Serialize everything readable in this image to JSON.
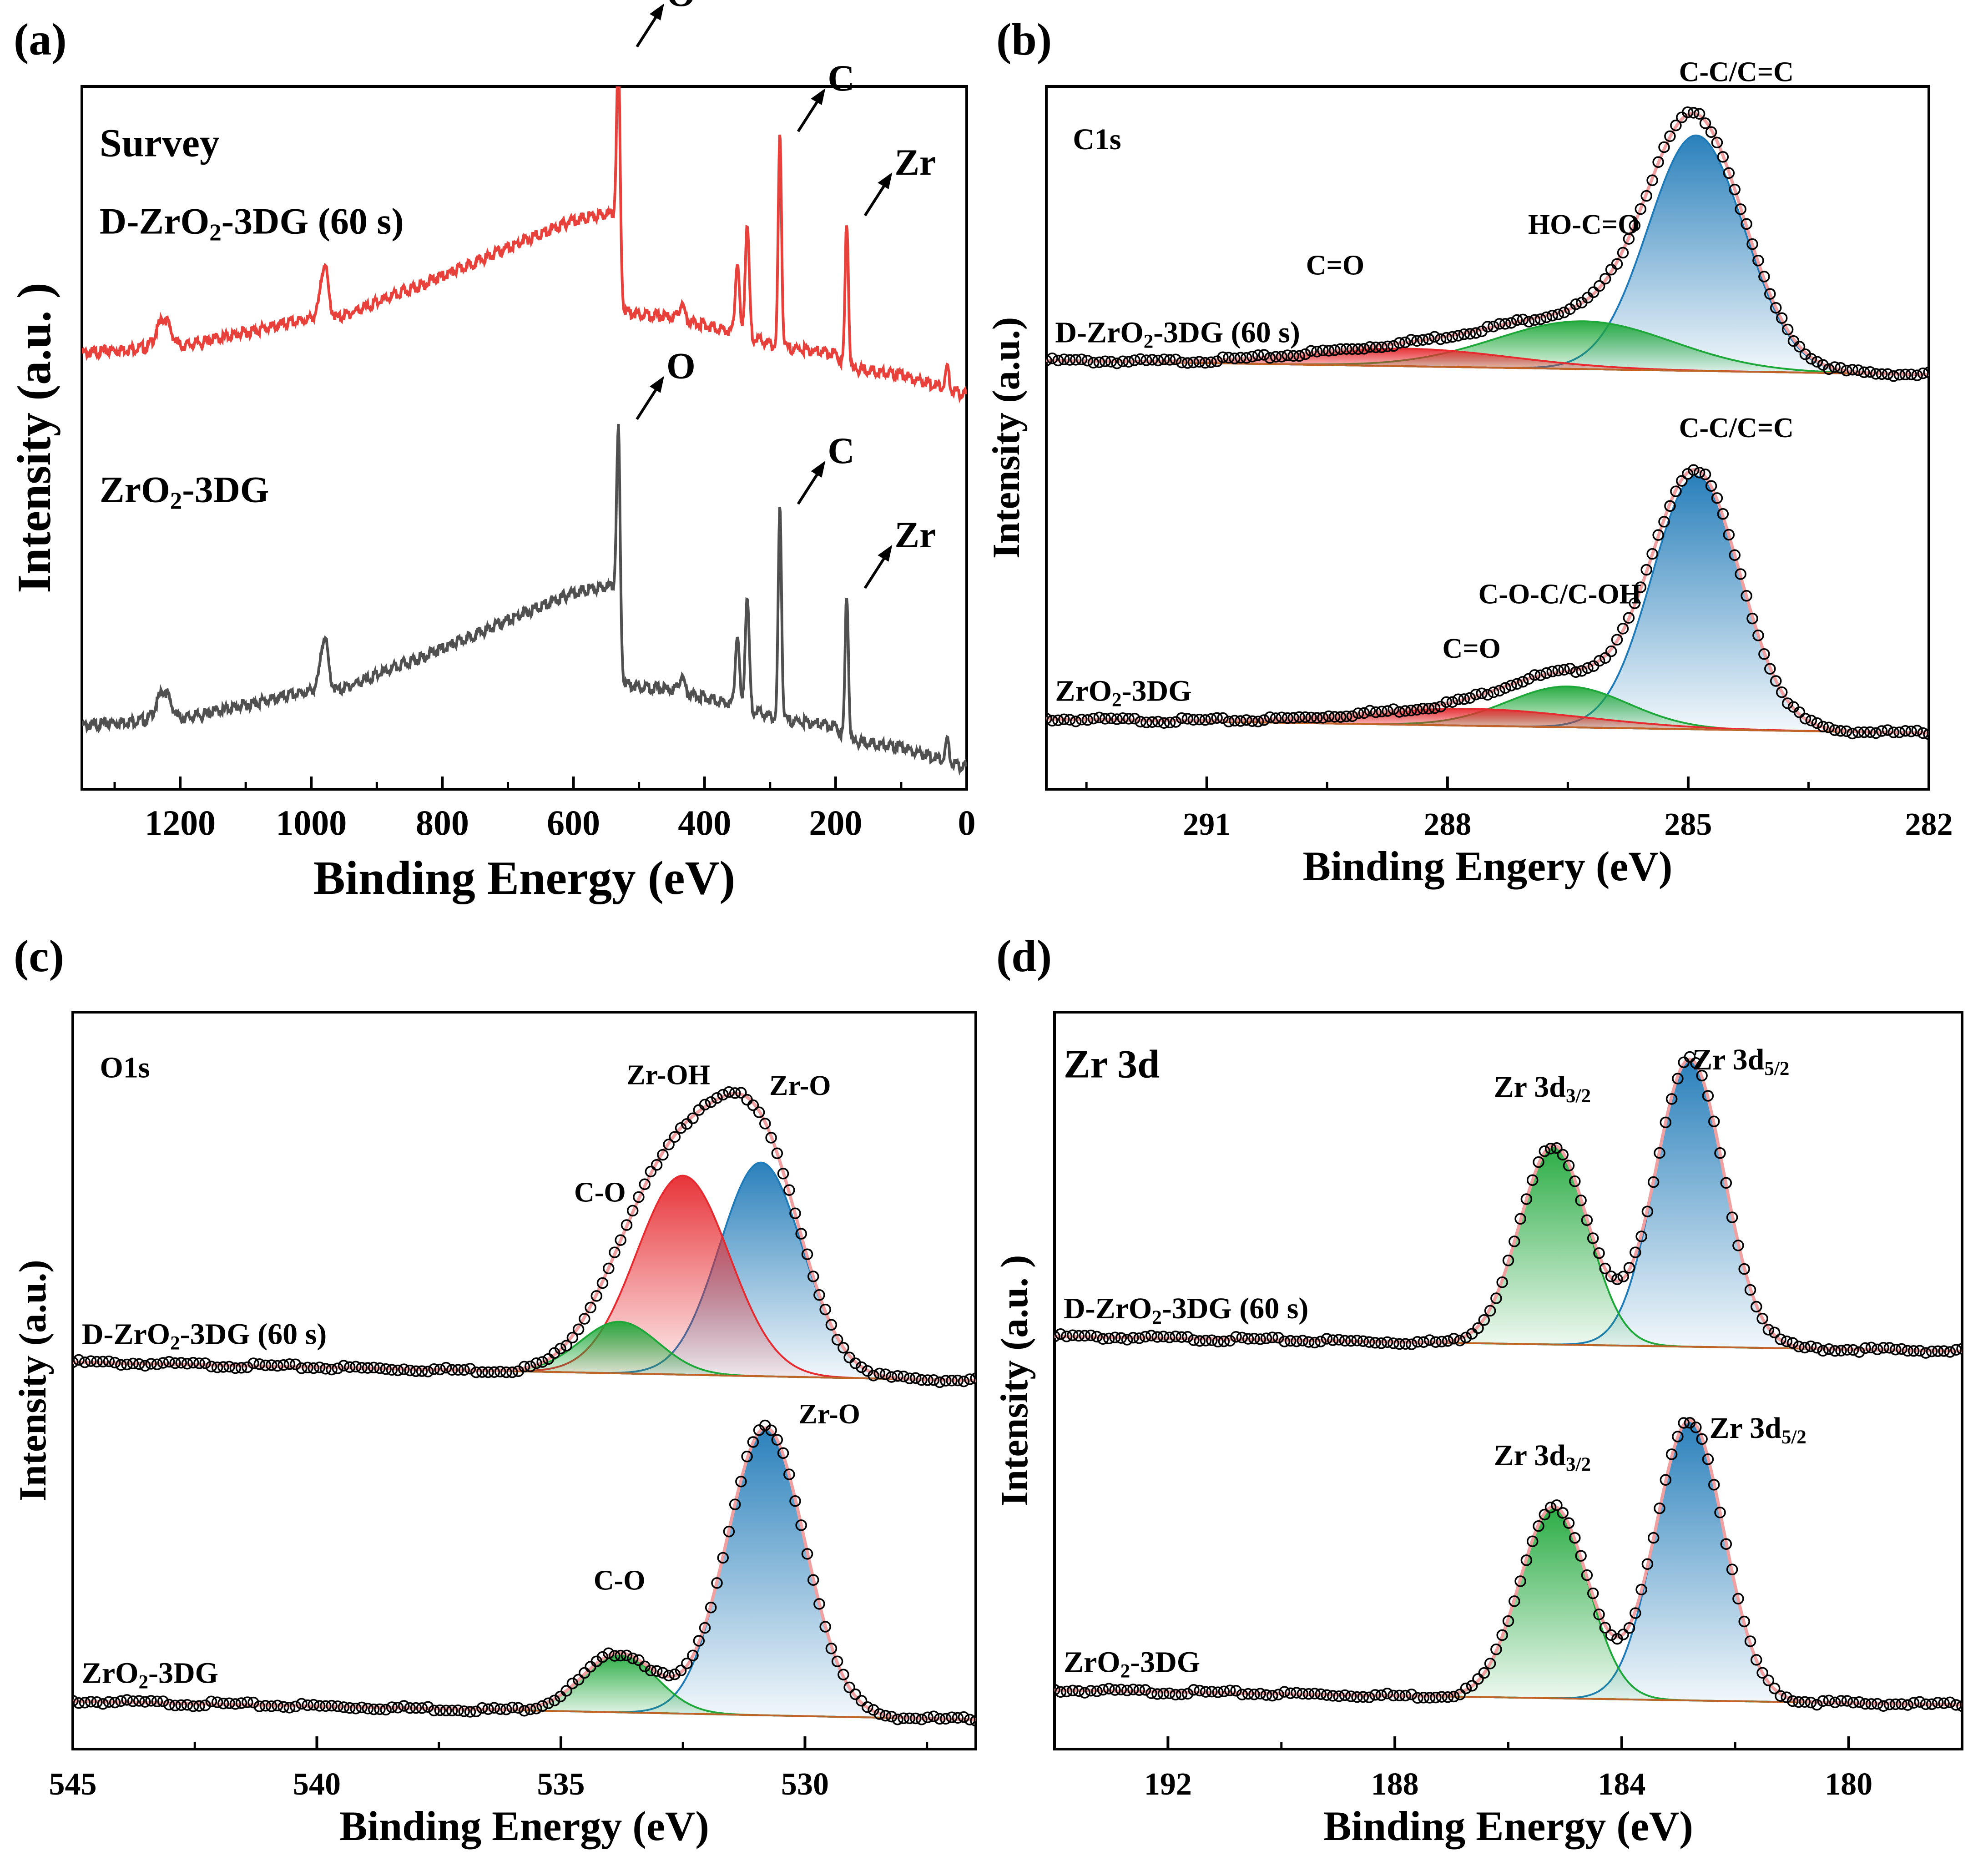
{
  "colors": {
    "sample_top": "#e8403a",
    "sample_bottom": "#505050",
    "peak_blue": "#1f7ab8",
    "peak_red": "#e62a2f",
    "peak_green": "#1fa83a",
    "envelope": "#f0a0a0",
    "background_line": "#c0642a",
    "marker": "#000000"
  },
  "chart_data": [
    {
      "panel": "a",
      "panel_label": "(a)",
      "type": "line",
      "title": "Survey",
      "xlabel": "Binding Energy (eV)",
      "ylabel": "Intensity (a.u. )",
      "xlim": [
        1350,
        0
      ],
      "ylim": [
        0,
        100
      ],
      "xticks": [
        1200,
        1000,
        800,
        600,
        400,
        200,
        0
      ],
      "xtick_labels": [
        "1200",
        "1000",
        "800",
        "600",
        "400",
        "200",
        "0"
      ],
      "series": [
        {
          "name": "D-ZrO2-3DG (60 s)",
          "label_main": "D-ZrO",
          "label_sub": "2",
          "label_rest": "-3DG (60 s)",
          "color_key": "sample_top",
          "offset": 56,
          "baseline": [
            [
              1350,
              6
            ],
            [
              1240,
              7
            ],
            [
              1200,
              7
            ],
            [
              1100,
              9
            ],
            [
              1000,
              11
            ],
            [
              980,
              13
            ],
            [
              960,
              11
            ],
            [
              800,
              17
            ],
            [
              700,
              21
            ],
            [
              600,
              25
            ],
            [
              545,
              26
            ],
            [
              531,
              25
            ],
            [
              528,
              12
            ],
            [
              440,
              11
            ],
            [
              350,
              9
            ],
            [
              290,
              7
            ],
            [
              200,
              6
            ],
            [
              185,
              4
            ],
            [
              100,
              3
            ],
            [
              0,
              0
            ]
          ],
          "peaks": [
            [
              1225,
              4,
              10
            ],
            [
              980,
              6,
              5
            ],
            [
              531,
              24,
              3
            ],
            [
              435,
              2,
              4
            ],
            [
              350,
              10,
              3
            ],
            [
              335,
              16,
              3
            ],
            [
              285,
              30,
              2.5
            ],
            [
              183,
              21,
              2.5
            ],
            [
              30,
              3,
              3
            ]
          ]
        },
        {
          "name": "ZrO2-3DG",
          "label_main": "ZrO",
          "label_sub": "2",
          "label_rest": "-3DG",
          "color_key": "sample_bottom",
          "offset": 3,
          "baseline": [
            [
              1350,
              6
            ],
            [
              1240,
              7
            ],
            [
              1200,
              7
            ],
            [
              1100,
              9
            ],
            [
              1000,
              11
            ],
            [
              980,
              13
            ],
            [
              960,
              11
            ],
            [
              800,
              17
            ],
            [
              700,
              21
            ],
            [
              600,
              25
            ],
            [
              545,
              26
            ],
            [
              531,
              25
            ],
            [
              528,
              12
            ],
            [
              440,
              11
            ],
            [
              350,
              9
            ],
            [
              290,
              7
            ],
            [
              200,
              6
            ],
            [
              185,
              4
            ],
            [
              100,
              3
            ],
            [
              0,
              0
            ]
          ],
          "peaks": [
            [
              1225,
              4,
              10
            ],
            [
              980,
              6,
              5
            ],
            [
              531,
              24,
              3
            ],
            [
              435,
              2,
              4
            ],
            [
              350,
              10,
              3
            ],
            [
              335,
              16,
              3
            ],
            [
              285,
              30,
              2.5
            ],
            [
              183,
              21,
              2.5
            ],
            [
              30,
              3,
              3
            ]
          ]
        }
      ],
      "annotations": [
        {
          "text": "O",
          "x": 531,
          "series": 0,
          "at": 100
        },
        {
          "text": "C",
          "x": 285,
          "series": 0,
          "at": 100
        },
        {
          "text": "Zr",
          "x": 183,
          "series": 0,
          "at": 100
        },
        {
          "text": "O",
          "x": 531,
          "series": 1,
          "at": 100
        },
        {
          "text": "C",
          "x": 285,
          "series": 1,
          "at": 100
        },
        {
          "text": "Zr",
          "x": 183,
          "series": 1,
          "at": 100
        }
      ]
    },
    {
      "panel": "b",
      "panel_label": "(b)",
      "type": "line",
      "title": "C1s",
      "xlabel": "Binding Engery (eV)",
      "ylabel": "Intensity (a.u.)",
      "xlim": [
        293,
        282
      ],
      "ylim": [
        0,
        100
      ],
      "xticks": [
        291,
        288,
        285,
        282
      ],
      "xtick_labels": [
        "291",
        "288",
        "285",
        "282"
      ],
      "series": [
        {
          "name": "D-ZrO2-3DG (60 s)",
          "label_main": "D-ZrO",
          "label_sub": "2",
          "label_rest": "-3DG (60 s)",
          "offset": 59,
          "bg_start": 2,
          "bg_end": 0,
          "components": [
            {
              "name": "C-C/C=C",
              "center": 284.9,
              "height": 33.5,
              "sigma": 0.6,
              "color_key": "peak_blue"
            },
            {
              "name": "HO-C=O",
              "center": 286.3,
              "height": 6.8,
              "sigma": 1.1,
              "color_key": "peak_green"
            },
            {
              "name": "C=O",
              "center": 288.5,
              "height": 2.5,
              "sigma": 1.3,
              "color_key": "peak_red"
            }
          ]
        },
        {
          "name": "ZrO2-3DG",
          "label_main": "ZrO",
          "label_sub": "2",
          "label_rest": "-3DG",
          "offset": 10,
          "bg_start": 0,
          "bg_end": -2,
          "components": [
            {
              "name": "C-C/C=C",
              "center": 284.9,
              "height": 36,
              "sigma": 0.55,
              "color_key": "peak_blue"
            },
            {
              "name": "C-O-C/C-OH",
              "center": 286.5,
              "height": 5.8,
              "sigma": 0.75,
              "color_key": "peak_green"
            },
            {
              "name": "C=O",
              "center": 287.7,
              "height": 2.4,
              "sigma": 1.4,
              "color_key": "peak_red"
            }
          ]
        }
      ]
    },
    {
      "panel": "c",
      "panel_label": "(c)",
      "type": "line",
      "title": "O1s",
      "xlabel": "Binding Energy (eV)",
      "ylabel": "Intensity (a.u.)",
      "xlim": [
        545,
        526.5
      ],
      "ylim": [
        0,
        100
      ],
      "xticks": [
        545,
        540,
        535,
        530
      ],
      "xtick_labels": [
        "545",
        "540",
        "535",
        "530"
      ],
      "series": [
        {
          "name": "D-ZrO2-3DG (60 s)",
          "label_main": "D-ZrO",
          "label_sub": "2",
          "label_rest": "-3DG (60 s)",
          "offset": 50,
          "bg_start": 2.5,
          "bg_end": 0,
          "components": [
            {
              "name": "Zr-O",
              "center": 530.9,
              "height": 29,
              "sigma": 0.85,
              "color_key": "peak_blue"
            },
            {
              "name": "Zr-OH",
              "center": 532.5,
              "height": 27,
              "sigma": 0.95,
              "color_key": "peak_red"
            },
            {
              "name": "C-O",
              "center": 533.8,
              "height": 7,
              "sigma": 0.8,
              "color_key": "peak_green"
            }
          ]
        },
        {
          "name": "ZrO2-3DG",
          "label_main": "ZrO",
          "label_sub": "2",
          "label_rest": "-3DG",
          "offset": 4,
          "bg_start": 2.5,
          "bg_end": 0,
          "components": [
            {
              "name": "Zr-O",
              "center": 530.8,
              "height": 39,
              "sigma": 0.8,
              "color_key": "peak_blue"
            },
            {
              "name": "C-O",
              "center": 533.8,
              "height": 8,
              "sigma": 0.75,
              "color_key": "peak_green"
            }
          ]
        }
      ]
    },
    {
      "panel": "d",
      "panel_label": "(d)",
      "type": "line",
      "title": "Zr 3d",
      "xlabel": "Binding Energy (eV)",
      "ylabel": "Intensity (a.u. )",
      "xlim": [
        194,
        178
      ],
      "ylim": [
        0,
        100
      ],
      "xticks": [
        192,
        188,
        184,
        180
      ],
      "xtick_labels": [
        "192",
        "188",
        "184",
        "180"
      ],
      "series": [
        {
          "name": "D-ZrO2-3DG (60 s)",
          "label_main": "D-ZrO",
          "label_sub": "2",
          "label_rest": "-3DG (60 s)",
          "offset": 54,
          "bg_start": 2,
          "bg_end": 0,
          "components": [
            {
              "name": "Zr 3d5/2",
              "label_main": "Zr 3d",
              "label_sub": "5/2",
              "center": 182.8,
              "height": 39,
              "sigma": 0.6,
              "color_key": "peak_blue"
            },
            {
              "name": "Zr 3d3/2",
              "label_main": "Zr 3d",
              "label_sub": "3/2",
              "center": 185.2,
              "height": 27,
              "sigma": 0.6,
              "color_key": "peak_green"
            }
          ]
        },
        {
          "name": "ZrO2-3DG",
          "label_main": "ZrO",
          "label_sub": "2",
          "label_rest": "-3DG",
          "offset": 6,
          "bg_start": 2,
          "bg_end": 0,
          "components": [
            {
              "name": "Zr 3d5/2",
              "label_main": "Zr 3d",
              "label_sub": "5/2",
              "center": 182.8,
              "height": 38,
              "sigma": 0.6,
              "color_key": "peak_blue"
            },
            {
              "name": "Zr 3d3/2",
              "label_main": "Zr 3d",
              "label_sub": "3/2",
              "center": 185.2,
              "height": 26,
              "sigma": 0.6,
              "color_key": "peak_green"
            }
          ]
        }
      ]
    }
  ]
}
